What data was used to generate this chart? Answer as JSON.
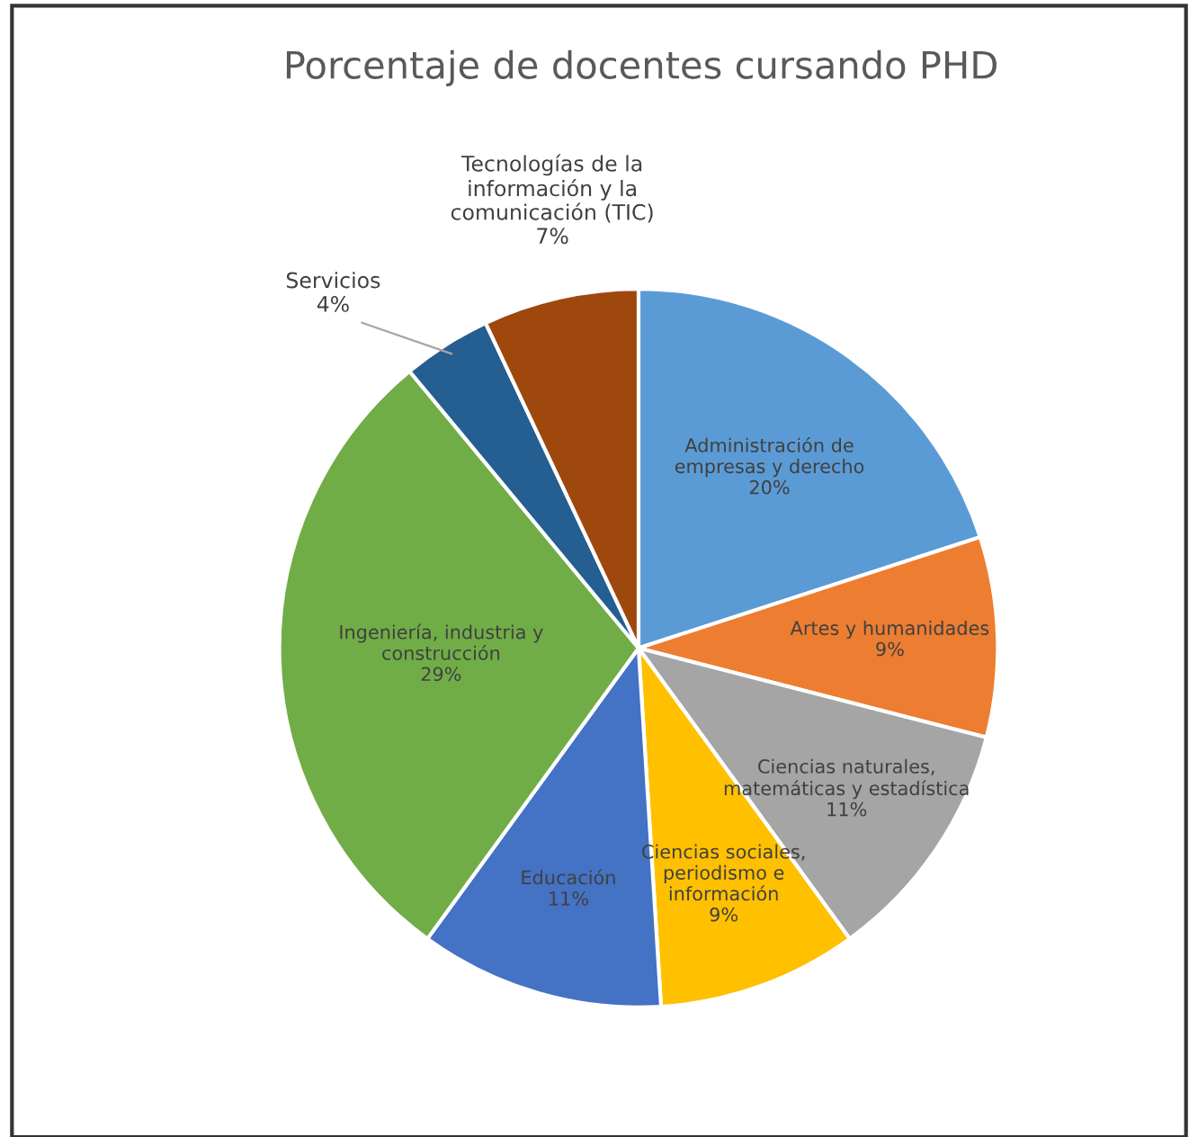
{
  "chart_data": {
    "type": "pie",
    "title": "Porcentaje de docentes cursando PHD",
    "categories": [
      "Administración de\nempresas y derecho",
      "Artes y humanidades",
      "Ciencias naturales,\nmatemáticas y estadística",
      "Ciencias sociales,\nperiodismo e\ninformación",
      "Educación",
      "Ingeniería, industria y\nconstrucción",
      "Servicios",
      "Tecnologías de la\ninformación y la\ncomunicación (TIC)"
    ],
    "values": [
      20,
      9,
      11,
      9,
      11,
      29,
      4,
      7
    ],
    "value_labels": [
      "20%",
      "9%",
      "11%",
      "9%",
      "11%",
      "29%",
      "4%",
      "7%"
    ],
    "colors": [
      "#5b9bd5",
      "#ed7d31",
      "#a5a5a5",
      "#ffc000",
      "#4472c4",
      "#70ad47",
      "#255e91",
      "#9e480e"
    ]
  }
}
